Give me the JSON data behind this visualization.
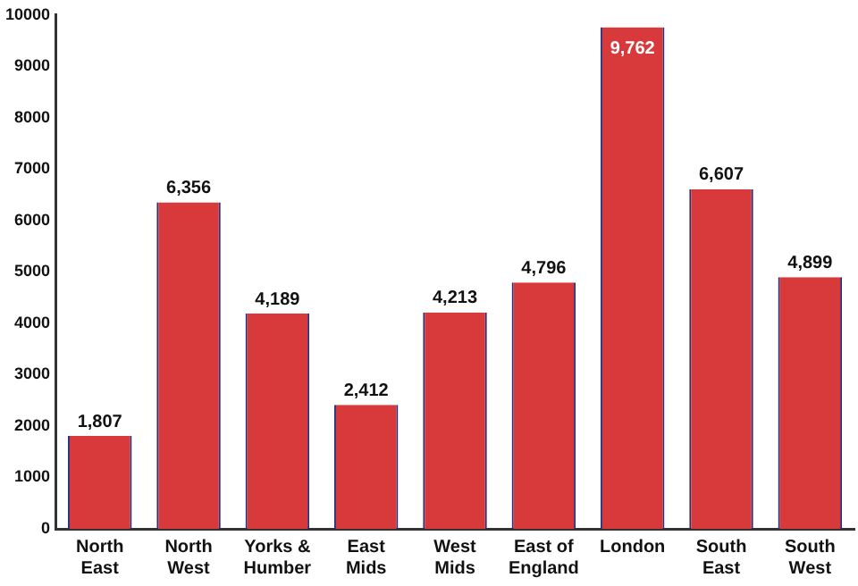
{
  "chart_data": {
    "type": "bar",
    "categories": [
      "North\nEast",
      "North\nWest",
      "Yorks &\nHumber",
      "East\nMids",
      "West\nMids",
      "East of\nEngland",
      "London",
      "South\nEast",
      "South\nWest"
    ],
    "values": [
      1807,
      6356,
      4189,
      2412,
      4213,
      4796,
      9762,
      6607,
      4899
    ],
    "value_labels": [
      "1,807",
      "6,356",
      "4,189",
      "2,412",
      "4,213",
      "4,796",
      "9,762",
      "6,607",
      "4,899"
    ],
    "color": "#d8393a",
    "ylim": [
      0,
      10000
    ],
    "yticks": [
      0,
      1000,
      2000,
      3000,
      4000,
      5000,
      6000,
      7000,
      8000,
      9000,
      10000
    ],
    "grid": false,
    "legend": false
  }
}
